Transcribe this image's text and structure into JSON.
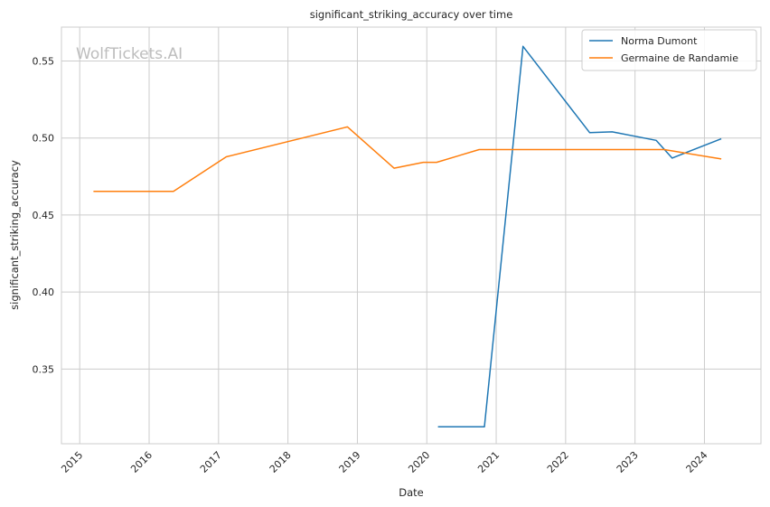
{
  "chart_data": {
    "type": "line",
    "title": "significant_striking_accuracy over time",
    "xlabel": "Date",
    "ylabel": "significant_striking_accuracy",
    "watermark": "WolfTickets.AI",
    "x_ticks": [
      "2015",
      "2016",
      "2017",
      "2018",
      "2019",
      "2020",
      "2021",
      "2022",
      "2023",
      "2024"
    ],
    "y_ticks": [
      "0.35",
      "0.40",
      "0.45",
      "0.50",
      "0.55"
    ],
    "xlim": [
      "2014-09-27",
      "2024-10-25"
    ],
    "ylim": [
      0.3015,
      0.572
    ],
    "grid": true,
    "legend_position": "top-right",
    "series": [
      {
        "name": "Norma Dumont",
        "color": "#1f77b4",
        "points": [
          [
            "2020-02-29",
            0.3125
          ],
          [
            "2020-10-31",
            0.3125
          ],
          [
            "2021-05-22",
            0.5595
          ],
          [
            "2022-05-07",
            0.5035
          ],
          [
            "2022-09-03",
            0.504
          ],
          [
            "2023-04-22",
            0.4985
          ],
          [
            "2023-07-15",
            0.487
          ],
          [
            "2024-03-30",
            0.4995
          ]
        ]
      },
      {
        "name": "Germaine de Randamie",
        "color": "#ff7f0e",
        "points": [
          [
            "2015-03-14",
            0.4653
          ],
          [
            "2016-05-08",
            0.4653
          ],
          [
            "2017-02-11",
            0.4878
          ],
          [
            "2018-11-10",
            0.5072
          ],
          [
            "2019-07-13",
            0.4804
          ],
          [
            "2019-12-14",
            0.4842
          ],
          [
            "2020-02-22",
            0.4842
          ],
          [
            "2020-10-03",
            0.4925
          ],
          [
            "2023-06-03",
            0.4925
          ],
          [
            "2024-03-30",
            0.4864
          ]
        ]
      }
    ]
  }
}
